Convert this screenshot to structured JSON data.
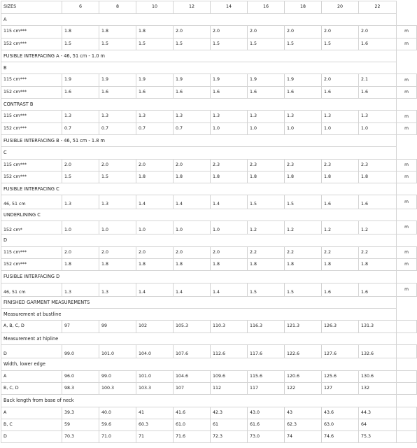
{
  "header": {
    "label": "SIZES",
    "sizes": [
      "6",
      "8",
      "10",
      "12",
      "14",
      "16",
      "18",
      "20",
      "22"
    ]
  },
  "rows": [
    {
      "kind": "section",
      "title": "A"
    },
    {
      "kind": "data",
      "label": "115 cm***",
      "values": [
        "1.8",
        "1.8",
        "1.8",
        "2.0",
        "2.0",
        "2.0",
        "2.0",
        "2.0",
        "2.0"
      ],
      "unit": "m"
    },
    {
      "kind": "data",
      "label": "152 cm***",
      "values": [
        "1.5",
        "1.5",
        "1.5",
        "1.5",
        "1.5",
        "1.5",
        "1.5",
        "1.5",
        "1.6"
      ],
      "unit": "m"
    },
    {
      "kind": "section",
      "title": "FUSIBLE INTERFACING A - 46, 51 cm - 1.0 m"
    },
    {
      "kind": "section",
      "title": "B"
    },
    {
      "kind": "data",
      "label": "115 cm***",
      "values": [
        "1.9",
        "1.9",
        "1.9",
        "1.9",
        "1.9",
        "1.9",
        "1.9",
        "2.0",
        "2.1"
      ],
      "unit": "m"
    },
    {
      "kind": "data",
      "label": "152 cm***",
      "values": [
        "1.6",
        "1.6",
        "1.6",
        "1.6",
        "1.6",
        "1.6",
        "1.6",
        "1.6",
        "1.6"
      ],
      "unit": "m"
    },
    {
      "kind": "section",
      "title": "CONTRAST B"
    },
    {
      "kind": "data",
      "label": "115 cm***",
      "values": [
        "1.3",
        "1.3",
        "1.3",
        "1.3",
        "1.3",
        "1.3",
        "1.3",
        "1.3",
        "1.3"
      ],
      "unit": "m"
    },
    {
      "kind": "data",
      "label": "152 cm***",
      "values": [
        "0.7",
        "0.7",
        "0.7",
        "0.7",
        "1.0",
        "1.0",
        "1.0",
        "1.0",
        "1.0"
      ],
      "unit": "m"
    },
    {
      "kind": "section",
      "title": "FUSIBLE INTERFACING B - 46, 51 cm - 1.8 m"
    },
    {
      "kind": "section",
      "title": "C"
    },
    {
      "kind": "data",
      "label": "115 cm***",
      "values": [
        "2.0",
        "2.0",
        "2.0",
        "2.0",
        "2.3",
        "2.3",
        "2.3",
        "2.3",
        "2.3"
      ],
      "unit": "m"
    },
    {
      "kind": "data",
      "label": "152 cm***",
      "values": [
        "1.5",
        "1.5",
        "1.8",
        "1.8",
        "1.8",
        "1.8",
        "1.8",
        "1.8",
        "1.8"
      ],
      "unit": "m"
    },
    {
      "kind": "section",
      "title": "FUSIBLE INTERFACING C"
    },
    {
      "kind": "data",
      "label": "46, 51 cm",
      "values": [
        "1.3",
        "1.3",
        "1.4",
        "1.4",
        "1.4",
        "1.5",
        "1.5",
        "1.6",
        "1.6"
      ],
      "unit": "m",
      "tall": true
    },
    {
      "kind": "section",
      "title": "UNDERLINING C"
    },
    {
      "kind": "data",
      "label": "152 cm*",
      "values": [
        "1.0",
        "1.0",
        "1.0",
        "1.0",
        "1.0",
        "1.2",
        "1.2",
        "1.2",
        "1.2"
      ],
      "unit": "m",
      "tall": true
    },
    {
      "kind": "section",
      "title": "D"
    },
    {
      "kind": "data",
      "label": "115 cm***",
      "values": [
        "2.0",
        "2.0",
        "2.0",
        "2.0",
        "2.0",
        "2.2",
        "2.2",
        "2.2",
        "2.2"
      ],
      "unit": "m"
    },
    {
      "kind": "data",
      "label": "152 cm***",
      "values": [
        "1.8",
        "1.8",
        "1.8",
        "1.8",
        "1.8",
        "1.8",
        "1.8",
        "1.8",
        "1.8"
      ],
      "unit": "m"
    },
    {
      "kind": "section",
      "title": "FUSIBLE INTERFACING D"
    },
    {
      "kind": "data",
      "label": "46, 51 cm",
      "values": [
        "1.3",
        "1.3",
        "1.4",
        "1.4",
        "1.4",
        "1.5",
        "1.5",
        "1.6",
        "1.6"
      ],
      "unit": "m",
      "tall": true
    },
    {
      "kind": "section",
      "title": "FINISHED GARMENT MEASUREMENTS"
    },
    {
      "kind": "section",
      "title": "Measurement at bustline"
    },
    {
      "kind": "data",
      "label": "A, B, C, D",
      "values": [
        "97",
        "99",
        "102",
        "105.3",
        "110.3",
        "116.3",
        "121.3",
        "126.3",
        "131.3"
      ],
      "unit": ""
    },
    {
      "kind": "section",
      "title": "Measurement at hipline"
    },
    {
      "kind": "data",
      "label": "D",
      "values": [
        "99.0",
        "101.0",
        "104.0",
        "107.6",
        "112.6",
        "117.6",
        "122.6",
        "127.6",
        "132.6"
      ],
      "unit": "",
      "tall": true
    },
    {
      "kind": "section",
      "title": "Width, lower edge"
    },
    {
      "kind": "data",
      "label": "A",
      "values": [
        "96.0",
        "99.0",
        "101.0",
        "104.6",
        "109.6",
        "115.6",
        "120.6",
        "125.6",
        "130.6"
      ],
      "unit": ""
    },
    {
      "kind": "data",
      "label": "B, C, D",
      "values": [
        "98.3",
        "100.3",
        "103.3",
        "107",
        "112",
        "117",
        "122",
        "127",
        "132"
      ],
      "unit": ""
    },
    {
      "kind": "section",
      "title": "Back length from base of neck"
    },
    {
      "kind": "data",
      "label": "A",
      "values": [
        "39.3",
        "40.0",
        "41",
        "41.6",
        "42.3",
        "43.0",
        "43",
        "43.6",
        "44.3"
      ],
      "unit": ""
    },
    {
      "kind": "data",
      "label": "B, C",
      "values": [
        "59",
        "59.6",
        "60.3",
        "61.0",
        "61",
        "61.6",
        "62.3",
        "63.0",
        "64"
      ],
      "unit": ""
    },
    {
      "kind": "data",
      "label": "D",
      "values": [
        "70.3",
        "71.0",
        "71",
        "71.6",
        "72.3",
        "73.0",
        "74",
        "74.6",
        "75.3"
      ],
      "unit": ""
    }
  ]
}
